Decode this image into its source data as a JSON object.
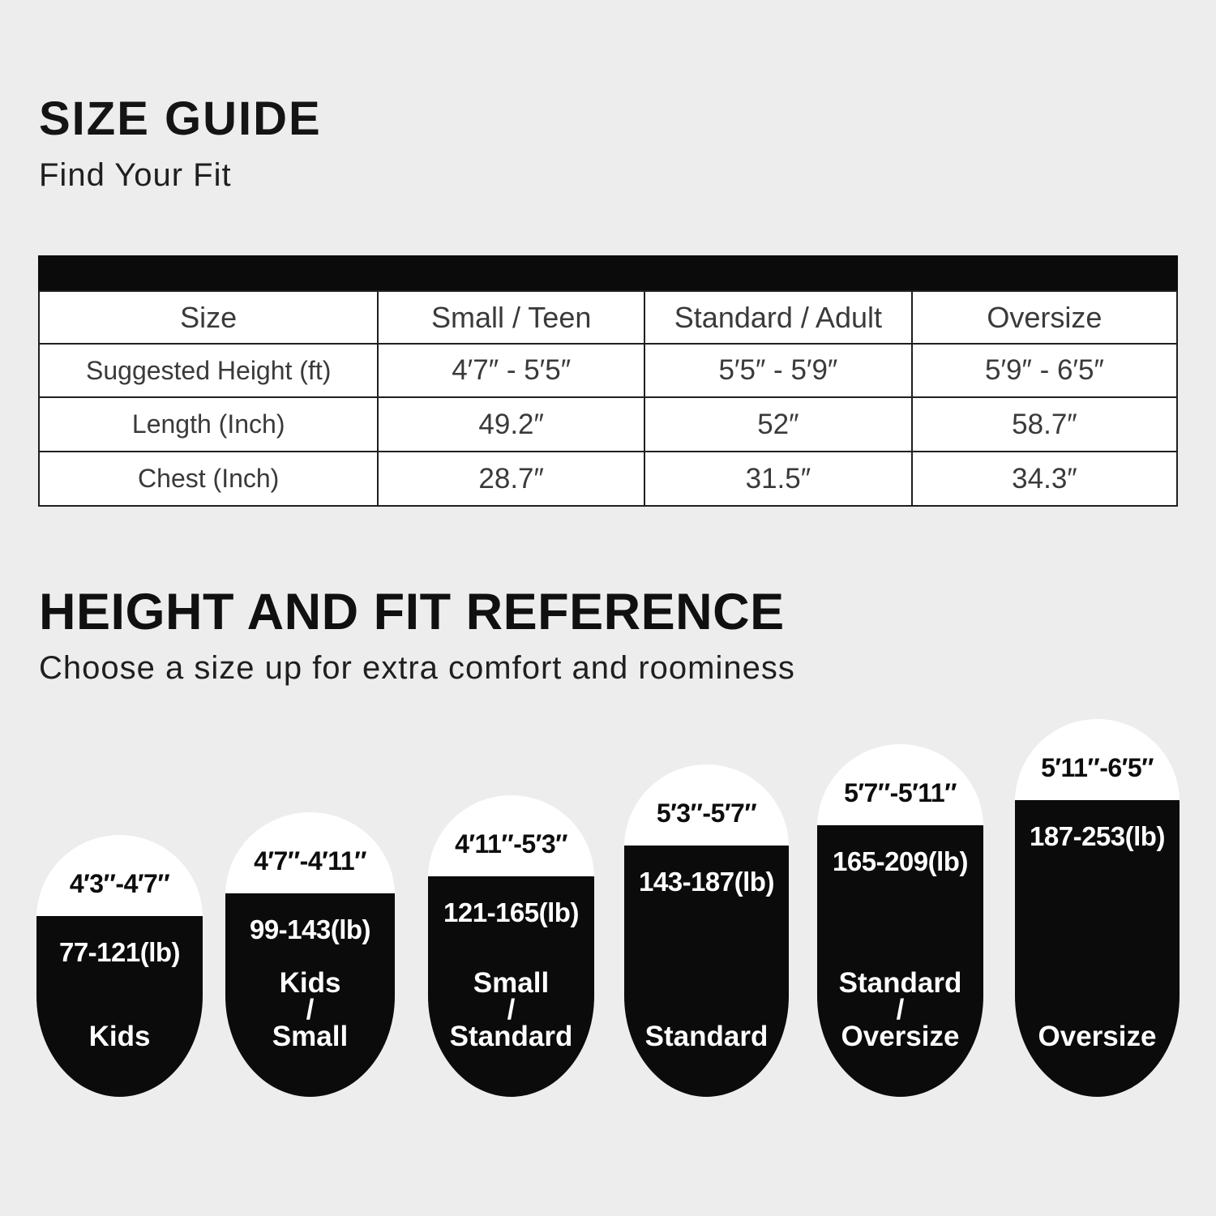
{
  "size_guide": {
    "title": "SIZE GUIDE",
    "subtitle": "Find Your Fit"
  },
  "size_table": {
    "columns": [
      "Size",
      "Small / Teen",
      "Standard / Adult",
      "Oversize"
    ],
    "rows": [
      {
        "label": "Suggested Height (ft)",
        "values": [
          "4′7″ - 5′5″",
          "5′5″ - 5′9″",
          "5′9″ - 6′5″"
        ]
      },
      {
        "label": "Length (Inch)",
        "values": [
          "49.2″",
          "52″",
          "58.7″"
        ]
      },
      {
        "label": "Chest (Inch)",
        "values": [
          "28.7″",
          "31.5″",
          "34.3″"
        ]
      }
    ]
  },
  "fit_reference": {
    "title": "HEIGHT AND FIT REFERENCE",
    "subtitle": "Choose a size up for extra comfort and roominess",
    "pills": [
      {
        "height_range": "4′3″-4′7″",
        "weight_range": "77-121(lb)",
        "size_name": "Kids"
      },
      {
        "height_range": "4′7″-4′11″",
        "weight_range": "99-143(lb)",
        "size_name": "Kids\n/\nSmall"
      },
      {
        "height_range": "4′11″-5′3″",
        "weight_range": "121-165(lb)",
        "size_name": "Small\n/\nStandard"
      },
      {
        "height_range": "5′3″-5′7″",
        "weight_range": "143-187(lb)",
        "size_name": "Standard"
      },
      {
        "height_range": "5′7″-5′11″",
        "weight_range": "165-209(lb)",
        "size_name": "Standard\n/\nOversize"
      },
      {
        "height_range": "5′11″-6′5″",
        "weight_range": "187-253(lb)",
        "size_name": "Oversize"
      }
    ]
  },
  "colors": {
    "background": "#ededed",
    "pill_black": "#0b0b0b",
    "pill_white": "#ffffff",
    "table_border": "#1f1f1f"
  }
}
